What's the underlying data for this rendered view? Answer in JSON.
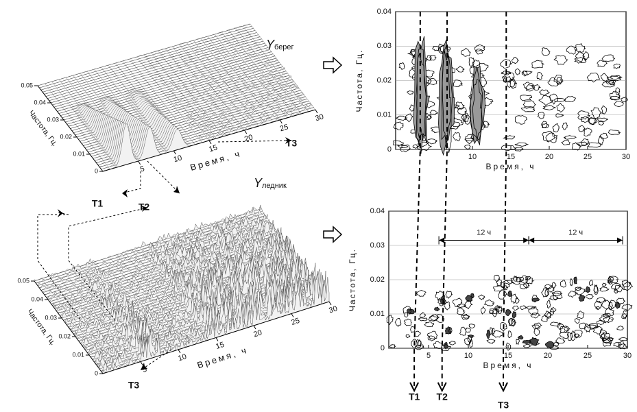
{
  "panels": [
    {
      "type": "surface",
      "xlabel": "Время, ч",
      "ylabel": "Частота, Гц.",
      "xlim": [
        0,
        30
      ],
      "ylim": [
        0,
        0.05
      ],
      "xticks": [
        5,
        10,
        15,
        20,
        25,
        30
      ],
      "yticks": [
        0,
        0.01,
        0.02,
        0.03,
        0.04,
        0.05
      ],
      "tag": {
        "symbol": "Y",
        "sub": "берег"
      },
      "labels": [
        "T1",
        "T2",
        "T3"
      ]
    },
    {
      "type": "surface",
      "xlabel": "Время, ч",
      "ylabel": "Частота, Гц.",
      "xlim": [
        0,
        30
      ],
      "ylim": [
        0,
        0.05
      ],
      "xticks": [
        5,
        10,
        15,
        20,
        25,
        30
      ],
      "yticks": [
        0,
        0.01,
        0.02,
        0.03,
        0.04,
        0.05
      ],
      "tag": {
        "symbol": "Y",
        "sub": "ледник"
      },
      "labels": [
        "T3"
      ]
    },
    {
      "type": "contour",
      "xlabel": "Время, ч",
      "ylabel": "Частота, Гц.",
      "xlim": [
        0,
        30
      ],
      "ylim": [
        0,
        0.04
      ],
      "xticks": [
        10,
        15,
        20,
        25,
        30
      ],
      "yticks": [
        0,
        0.01,
        0.02,
        0.03,
        0.04
      ]
    },
    {
      "type": "contour",
      "xlabel": "Время, ч",
      "ylabel": "Частота, Гц.",
      "xlim": [
        0,
        30
      ],
      "ylim": [
        0,
        0.04
      ],
      "xticks": [
        5,
        10,
        15,
        20,
        25,
        30
      ],
      "yticks": [
        0,
        0.01,
        0.02,
        0.03,
        0.04
      ],
      "spans": [
        {
          "label": "12 ч",
          "from": 6.3,
          "to": 17.6
        },
        {
          "label": "12 ч",
          "from": 17.6,
          "to": 29.4
        }
      ],
      "events": [
        {
          "label": "T1",
          "x": 3.2
        },
        {
          "label": "T2",
          "x": 6.7
        },
        {
          "label": "T3",
          "x": 14.4
        }
      ]
    }
  ]
}
